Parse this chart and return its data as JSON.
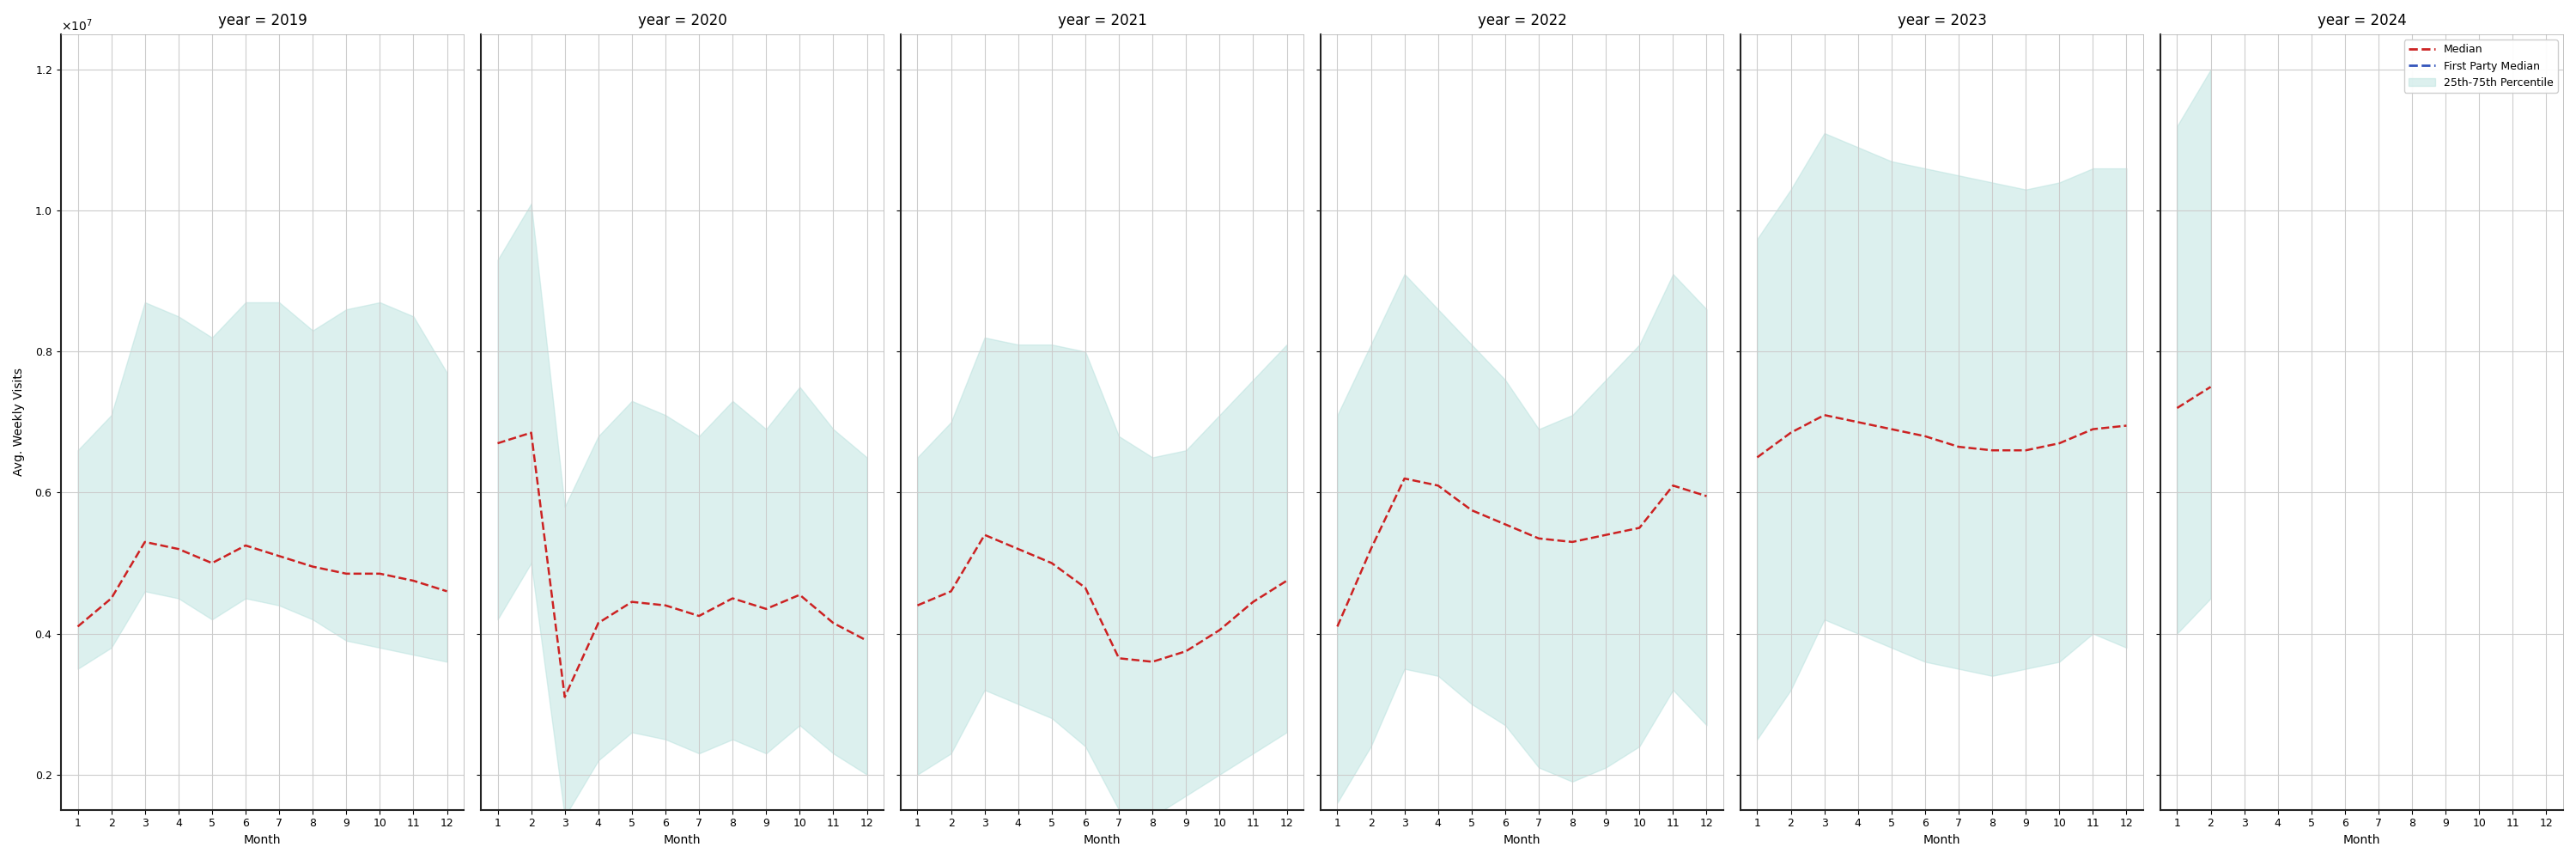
{
  "years": [
    2019,
    2020,
    2021,
    2022,
    2023,
    2024
  ],
  "months": [
    1,
    2,
    3,
    4,
    5,
    6,
    7,
    8,
    9,
    10,
    11,
    12
  ],
  "n_months": {
    "2019": 12,
    "2020": 12,
    "2021": 12,
    "2022": 12,
    "2023": 12,
    "2024": 2
  },
  "median": {
    "2019": [
      4100000,
      4500000,
      5300000,
      5200000,
      5000000,
      5250000,
      5100000,
      4950000,
      4850000,
      4850000,
      4750000,
      4600000
    ],
    "2020": [
      6700000,
      6850000,
      3100000,
      4150000,
      4450000,
      4400000,
      4250000,
      4500000,
      4350000,
      4550000,
      4150000,
      3900000
    ],
    "2021": [
      4400000,
      4600000,
      5400000,
      5200000,
      5000000,
      4650000,
      3650000,
      3600000,
      3750000,
      4050000,
      4450000,
      4750000
    ],
    "2022": [
      4100000,
      5200000,
      6200000,
      6100000,
      5750000,
      5550000,
      5350000,
      5300000,
      5400000,
      5500000,
      6100000,
      5950000
    ],
    "2023": [
      6500000,
      6850000,
      7100000,
      7000000,
      6900000,
      6800000,
      6650000,
      6600000,
      6600000,
      6700000,
      6900000,
      6950000
    ],
    "2024": [
      7200000,
      7500000,
      null,
      null,
      null,
      null,
      null,
      null,
      null,
      null,
      null,
      null
    ]
  },
  "p25": {
    "2019": [
      3500000,
      3800000,
      4600000,
      4500000,
      4200000,
      4500000,
      4400000,
      4200000,
      3900000,
      3800000,
      3700000,
      3600000
    ],
    "2020": [
      4200000,
      5000000,
      1400000,
      2200000,
      2600000,
      2500000,
      2300000,
      2500000,
      2300000,
      2700000,
      2300000,
      2000000
    ],
    "2021": [
      2000000,
      2300000,
      3200000,
      3000000,
      2800000,
      2400000,
      1500000,
      1400000,
      1700000,
      2000000,
      2300000,
      2600000
    ],
    "2022": [
      1600000,
      2400000,
      3500000,
      3400000,
      3000000,
      2700000,
      2100000,
      1900000,
      2100000,
      2400000,
      3200000,
      2700000
    ],
    "2023": [
      2500000,
      3200000,
      4200000,
      4000000,
      3800000,
      3600000,
      3500000,
      3400000,
      3500000,
      3600000,
      4000000,
      3800000
    ],
    "2024": [
      4000000,
      4500000,
      null,
      null,
      null,
      null,
      null,
      null,
      null,
      null,
      null,
      null
    ]
  },
  "p75": {
    "2019": [
      6600000,
      7100000,
      8700000,
      8500000,
      8200000,
      8700000,
      8700000,
      8300000,
      8600000,
      8700000,
      8500000,
      7700000
    ],
    "2020": [
      9300000,
      10100000,
      5800000,
      6800000,
      7300000,
      7100000,
      6800000,
      7300000,
      6900000,
      7500000,
      6900000,
      6500000
    ],
    "2021": [
      6500000,
      7000000,
      8200000,
      8100000,
      8100000,
      8000000,
      6800000,
      6500000,
      6600000,
      7100000,
      7600000,
      8100000
    ],
    "2022": [
      7100000,
      8100000,
      9100000,
      8600000,
      8100000,
      7600000,
      6900000,
      7100000,
      7600000,
      8100000,
      9100000,
      8600000
    ],
    "2023": [
      9600000,
      10300000,
      11100000,
      10900000,
      10700000,
      10600000,
      10500000,
      10400000,
      10300000,
      10400000,
      10600000,
      10600000
    ],
    "2024": [
      11200000,
      12000000,
      null,
      null,
      null,
      null,
      null,
      null,
      null,
      null,
      null,
      null
    ]
  },
  "ylim": [
    1500000.0,
    12500000.0
  ],
  "yticks": [
    2000000.0,
    4000000.0,
    6000000.0,
    8000000.0,
    10000000.0,
    12000000.0
  ],
  "fill_color": "#b2dfdb",
  "fill_alpha": 0.45,
  "median_color": "#cc2222",
  "fp_median_color": "#3355bb",
  "ylabel": "Avg. Weekly Visits",
  "xlabel": "Month",
  "title_fontsize": 12,
  "tick_fontsize": 9,
  "label_fontsize": 10,
  "background_color": "#ffffff",
  "grid_color": "#cccccc"
}
